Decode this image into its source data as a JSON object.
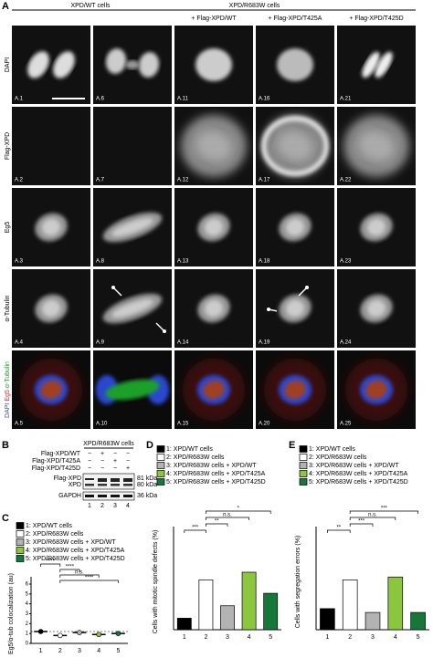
{
  "panel_a": {
    "label": "A",
    "group_headers": [
      "XPD/WT cells",
      "XPD/R683W cells"
    ],
    "column_headers": [
      "+ Flag-XPD/WT",
      "+ Flag-XPD/T425A",
      "+ Flag-XPD/T425D"
    ],
    "rows": [
      {
        "label": "DAPI",
        "cells": [
          "A.1",
          "A.6",
          "A.11",
          "A.16",
          "A.21"
        ]
      },
      {
        "label": "Flag-XPD",
        "cells": [
          "A.2",
          "A.7",
          "A.12",
          "A.17",
          "A.22"
        ]
      },
      {
        "label": "Eg5",
        "cells": [
          "A.3",
          "A.8",
          "A.13",
          "A.18",
          "A.23"
        ]
      },
      {
        "label": "α-Tubulin",
        "cells": [
          "A.4",
          "A.9",
          "A.14",
          "A.19",
          "A.24"
        ]
      },
      {
        "label_parts": [
          "DAPI",
          "Eg5",
          "α-Tubulin"
        ],
        "cells": [
          "A.5",
          "A.10",
          "A.15",
          "A.20",
          "A.25"
        ]
      }
    ]
  },
  "panel_b": {
    "label": "B",
    "header": "XPD/R683W cells",
    "rows": [
      {
        "label": "Flag-XPD/WT",
        "marks": [
          "−",
          "+",
          "−",
          "−"
        ]
      },
      {
        "label": "Flag-XPD/T425A",
        "marks": [
          "−",
          "−",
          "+",
          "−"
        ]
      },
      {
        "label": "Flag-XPD/T425D",
        "marks": [
          "−",
          "−",
          "−",
          "+"
        ]
      }
    ],
    "blots": [
      {
        "label": "Flag-XPD",
        "size": "81 kDa"
      },
      {
        "label": "XPD",
        "size": "80 kDa"
      },
      {
        "label": "GAPDH",
        "size": "36 kDa"
      }
    ],
    "lanes": [
      "1",
      "2",
      "3",
      "4"
    ]
  },
  "chart_data": [
    {
      "type": "dot",
      "panel_label": "C",
      "ylabel": "Eg5/α-tub colocalization (au)",
      "categories": [
        "1",
        "2",
        "3",
        "4",
        "5"
      ],
      "legend": [
        "1: XPD/WT cells",
        "2: XPD/R683W cells",
        "3: XPD/R683W cells + XPD/WT",
        "4: XPD/R683W cells + XPD/T425A",
        "5: XPD/R683W cells + XPD/T425D"
      ],
      "colors": [
        "#000000",
        "#ffffff",
        "#b3b3b3",
        "#8cc63f",
        "#15783a"
      ],
      "values": [
        1.2,
        0.8,
        1.1,
        0.9,
        1.0
      ],
      "ylim": [
        0,
        6
      ],
      "yticks": [
        0,
        1,
        2,
        3,
        4,
        5,
        6
      ],
      "comparisons": [
        {
          "label": "****",
          "between": [
            "1",
            "2"
          ]
        },
        {
          "label": "****",
          "between": [
            "2",
            "3"
          ]
        },
        {
          "label": "n.s.",
          "between": [
            "2",
            "4"
          ]
        },
        {
          "label": "****",
          "between": [
            "2",
            "5"
          ]
        }
      ]
    },
    {
      "type": "bar",
      "panel_label": "D",
      "ylabel": "Cells with mitotic spindle defects (%)",
      "categories": [
        "1",
        "2",
        "3",
        "4",
        "5"
      ],
      "legend": [
        "1: XPD/WT cells",
        "2: XPD/R683W cells",
        "3: XPD/R683W cells + XPD/WT",
        "4: XPD/R683W cells + XPD/T425A",
        "5: XPD/R683W cells + XPD/T425D"
      ],
      "colors": [
        "#000000",
        "#ffffff",
        "#b3b3b3",
        "#8cc63f",
        "#15783a"
      ],
      "values": [
        12,
        52,
        25,
        60,
        38
      ],
      "ylim": [
        0,
        100
      ],
      "comparisons": [
        {
          "label": "***",
          "between": [
            "1",
            "2"
          ]
        },
        {
          "label": "**",
          "between": [
            "2",
            "3"
          ]
        },
        {
          "label": "n.s.",
          "between": [
            "2",
            "4"
          ]
        },
        {
          "label": "*",
          "between": [
            "2",
            "5"
          ]
        }
      ]
    },
    {
      "type": "bar",
      "panel_label": "E",
      "ylabel": "Cells with segregation errors (%)",
      "categories": [
        "1",
        "2",
        "3",
        "4",
        "5"
      ],
      "legend": [
        "1: XPD/WT cells",
        "2: XPD/R683W cells",
        "3: XPD/R683W cells + XPD/WT",
        "4: XPD/R683W cells + XPD/T425A",
        "5: XPD/R683W cells + XPD/T425D"
      ],
      "colors": [
        "#000000",
        "#ffffff",
        "#b3b3b3",
        "#8cc63f",
        "#15783a"
      ],
      "values": [
        22,
        52,
        18,
        55,
        18
      ],
      "ylim": [
        0,
        100
      ],
      "comparisons": [
        {
          "label": "**",
          "between": [
            "1",
            "2"
          ]
        },
        {
          "label": "***",
          "between": [
            "2",
            "3"
          ]
        },
        {
          "label": "n.s.",
          "between": [
            "2",
            "4"
          ]
        },
        {
          "label": "***",
          "between": [
            "2",
            "5"
          ]
        }
      ]
    }
  ]
}
